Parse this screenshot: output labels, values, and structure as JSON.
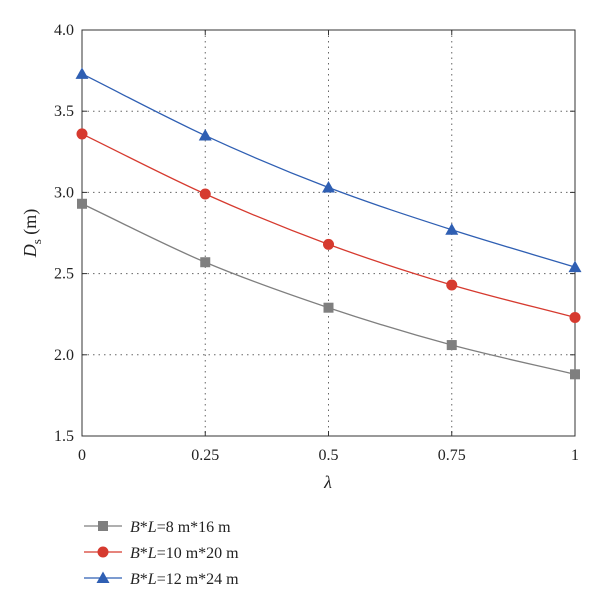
{
  "chart_data": {
    "type": "line",
    "x": [
      0,
      0.25,
      0.5,
      0.75,
      1
    ],
    "x_tick_labels": [
      "0",
      "0.25",
      "0.5",
      "0.75",
      "1"
    ],
    "y_tick_labels": [
      "1.5",
      "2.0",
      "2.5",
      "3.0",
      "3.5",
      "4.0"
    ],
    "xlabel": "λ",
    "ylabel_main": "D",
    "ylabel_sub": "s",
    "ylabel_unit": " (m)",
    "xlim": [
      0,
      1
    ],
    "ylim": [
      1.5,
      4.0
    ],
    "grid": "dotted",
    "legend_position": "bottom",
    "series": [
      {
        "name": "B*L=8 m*16 m",
        "label_b": "B",
        "label_star": "*",
        "label_l": "L",
        "label_rest": "=8 m*16 m",
        "marker": "square",
        "color": "#7f7f7f",
        "values": [
          2.93,
          2.57,
          2.29,
          2.06,
          1.88
        ]
      },
      {
        "name": "B*L=10 m*20 m",
        "label_b": "B",
        "label_star": "*",
        "label_l": "L",
        "label_rest": "=10 m*20 m",
        "marker": "circle",
        "color": "#d63a2f",
        "values": [
          3.36,
          2.99,
          2.68,
          2.43,
          2.23
        ]
      },
      {
        "name": "B*L=12 m*24 m",
        "label_b": "B",
        "label_star": "*",
        "label_l": "L",
        "label_rest": "=12 m*24 m",
        "marker": "triangle",
        "color": "#2f5fb3",
        "values": [
          3.73,
          3.35,
          3.03,
          2.77,
          2.54
        ]
      }
    ]
  }
}
